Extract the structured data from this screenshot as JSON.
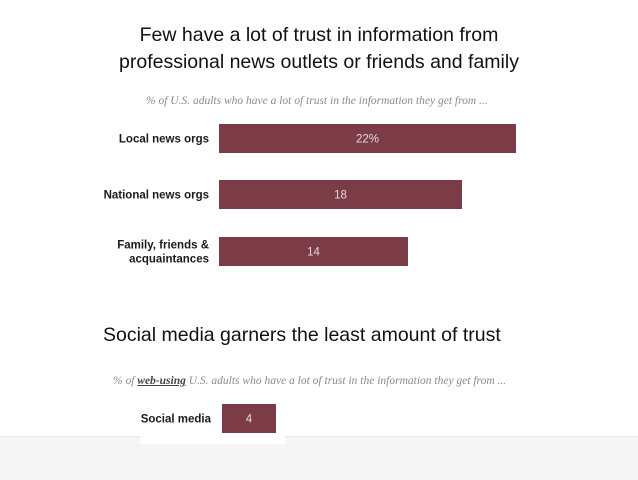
{
  "slide": {
    "title_lines": [
      "Few have a lot of trust in information from",
      "professional news outlets or friends and family"
    ],
    "subtitle": "Social media garners the least amount of trust"
  },
  "chart_data": [
    {
      "type": "bar",
      "orientation": "horizontal",
      "title": "% of U.S. adults who have a lot of trust in the information they get from ...",
      "categories": [
        [
          "Local news orgs"
        ],
        [
          "National news orgs"
        ],
        [
          "Family, friends &",
          "acquaintances"
        ]
      ],
      "values": [
        22,
        18,
        14
      ],
      "value_labels": [
        "22%",
        "18",
        "14"
      ],
      "xlim": [
        0,
        22
      ],
      "color": "#7b3c48",
      "grid": false
    },
    {
      "type": "bar",
      "orientation": "horizontal",
      "title_prefix": "% of ",
      "title_emphasis": "web-using",
      "title_suffix": " U.S. adults who have a lot of trust in the information they get from ...",
      "categories": [
        [
          "Social media"
        ]
      ],
      "values": [
        4
      ],
      "value_labels": [
        "4"
      ],
      "xlim": [
        0,
        22
      ],
      "color": "#7b3c48",
      "grid": false
    }
  ]
}
